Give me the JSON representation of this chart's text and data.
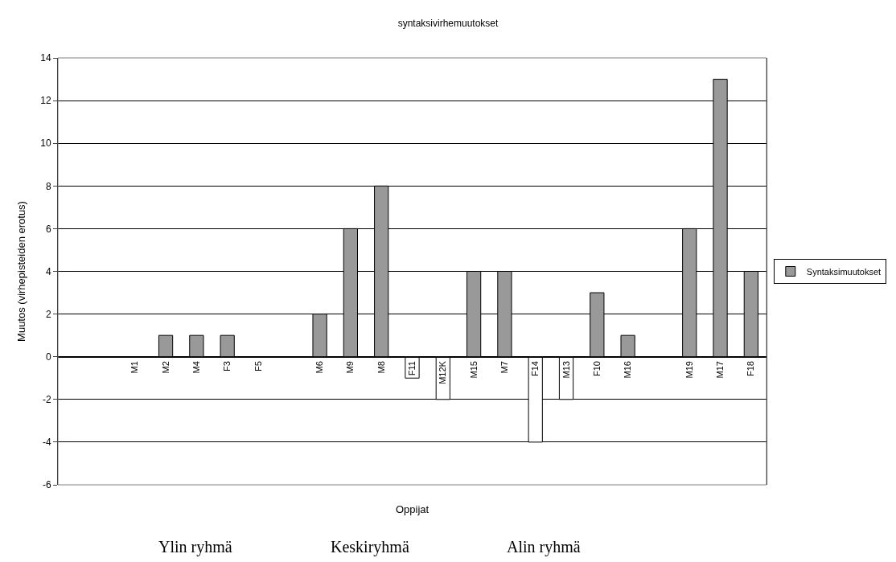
{
  "chart_data": {
    "type": "bar",
    "title": "syntaksivirhemuutokset",
    "xlabel": "Oppijat",
    "ylabel": "Muutos (virhepisteiden erotus)",
    "categories": [
      null,
      null,
      "M1",
      "M2",
      "M4",
      "F3",
      "F5",
      null,
      "M6",
      "M9",
      "M8",
      "F11",
      "M12K",
      "M15",
      "M7",
      "F14",
      "M13",
      "F10",
      "M16",
      null,
      "M19",
      "M17",
      "F18"
    ],
    "series": [
      {
        "name": "Syntaksimuutokset",
        "color": "#999999",
        "values": [
          null,
          null,
          0,
          1,
          1,
          1,
          0,
          null,
          2,
          6,
          8,
          -1,
          -2,
          4,
          4,
          -4,
          -2,
          3,
          1,
          null,
          6,
          13,
          4
        ],
        "colors": [
          "#999999",
          "#999999",
          "#999999",
          "#999999",
          "#999999",
          "#999999",
          "#999999",
          "#999999",
          "#999999",
          "#999999",
          "#999999",
          "#ffffff",
          "#ffffff",
          "#999999",
          "#999999",
          "#ffffff",
          "#ffffff",
          "#999999",
          "#999999",
          "#999999",
          "#999999",
          "#999999",
          "#999999"
        ]
      }
    ],
    "ylim": [
      -6,
      14
    ],
    "yticks": [
      -6,
      -4,
      -2,
      0,
      2,
      4,
      6,
      8,
      10,
      12,
      14
    ],
    "grid": "y",
    "legend": "right",
    "annotations": [
      "Ylin ryhmä",
      "Keskiryhmä",
      "Alin ryhmä"
    ]
  }
}
